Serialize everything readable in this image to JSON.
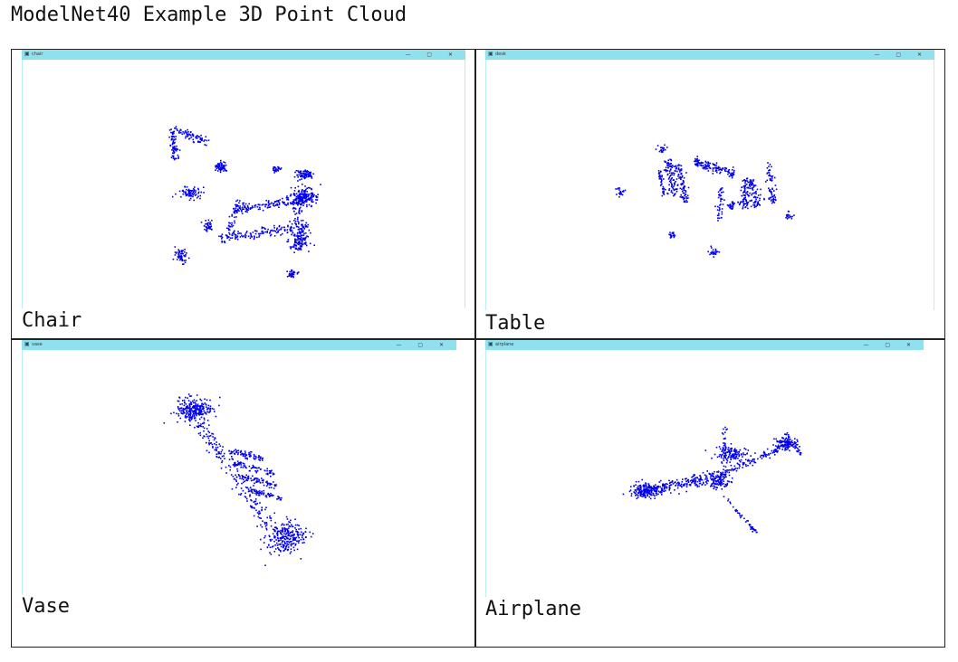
{
  "title": "ModelNet40 Example 3D Point Cloud",
  "panels": [
    {
      "label": "Chair",
      "window_title": "chair"
    },
    {
      "label": "Table",
      "window_title": "desk"
    },
    {
      "label": "Vase",
      "window_title": "vase"
    },
    {
      "label": "Airplane",
      "window_title": "airplane"
    }
  ],
  "window_controls": "— ▢ ✕",
  "point_color": "#0000ee",
  "titlebar_color": "#90e1ee"
}
